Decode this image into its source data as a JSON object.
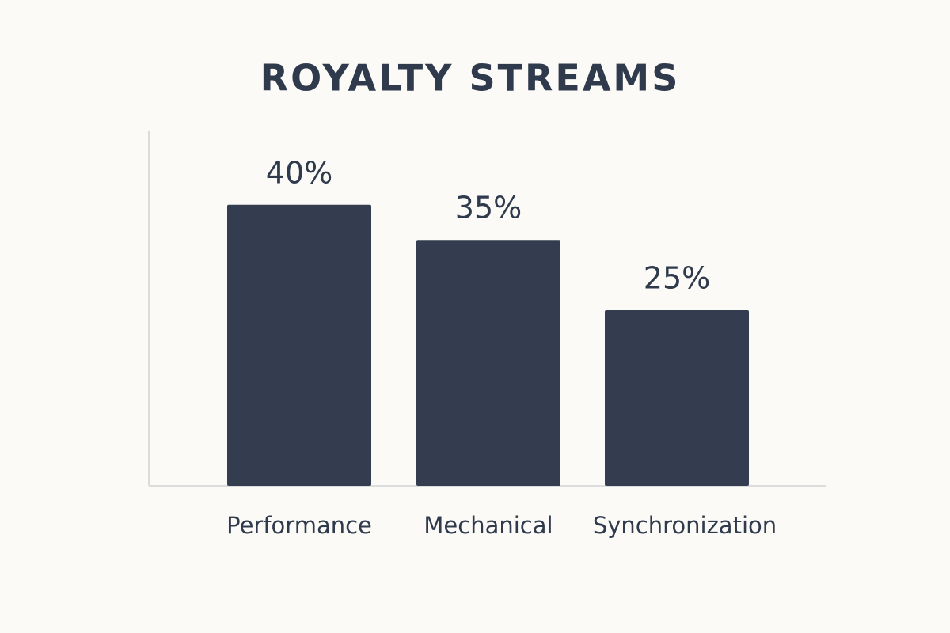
{
  "chart_data": {
    "type": "bar",
    "title": "ROYALTY STREAMS",
    "categories": [
      "Performance",
      "Mechanical",
      "Synchronization"
    ],
    "values": [
      40,
      35,
      25
    ],
    "value_labels": [
      "40%",
      "35%",
      "25%"
    ],
    "color": "#333d4f",
    "ylim": [
      0,
      50
    ]
  }
}
